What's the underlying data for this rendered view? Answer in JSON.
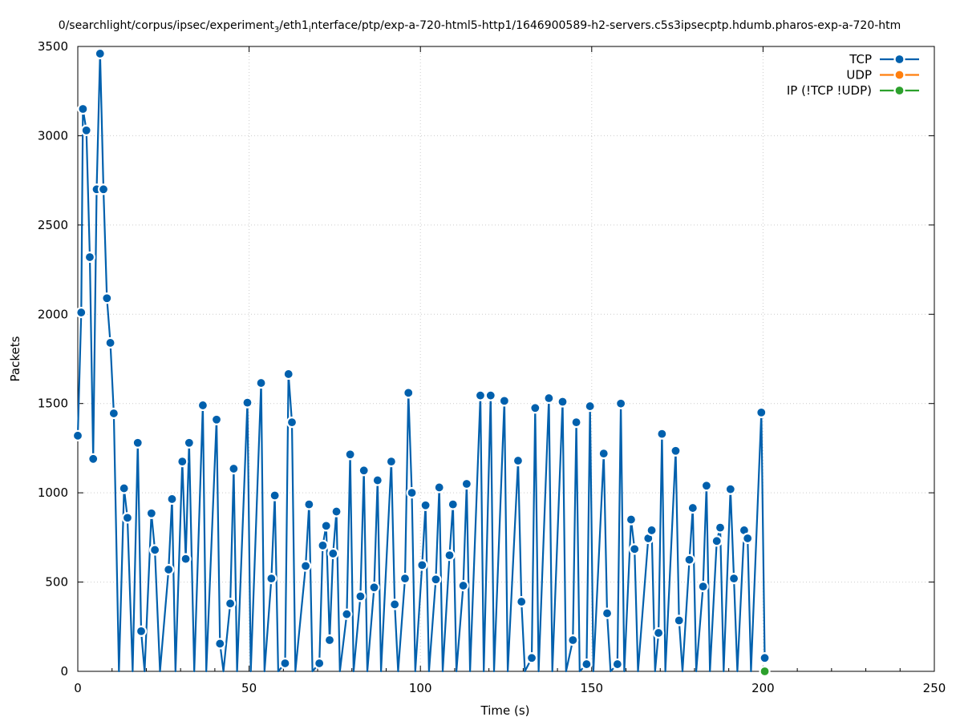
{
  "chart_data": {
    "type": "line",
    "title_left": "0/searchlight/corpus/ipsec/experiment",
    "title_sub1": "3",
    "title_mid": "/eth1",
    "title_sub2": "i",
    "title_right": "nterface/ptp/exp-a-720-html5-http1/1646900589-h2-servers.c5s3ipsecptp.hdumb.pharos-exp-a-720-htm",
    "xlabel": "Time (s)",
    "ylabel": "Packets",
    "xlim": [
      0,
      250
    ],
    "ylim": [
      0,
      3500
    ],
    "xticks": [
      0,
      50,
      100,
      150,
      200,
      250
    ],
    "yticks": [
      0,
      500,
      1000,
      1500,
      2000,
      2500,
      3000,
      3500
    ],
    "grid": true,
    "legend_position": "top-right",
    "series": [
      {
        "name": "TCP",
        "color": "#0060ad",
        "points": [
          [
            0,
            1320
          ],
          [
            1,
            2010
          ],
          [
            1.5,
            3150
          ],
          [
            2.5,
            3030
          ],
          [
            3.5,
            2320
          ],
          [
            4.5,
            1190
          ],
          [
            5.5,
            2700
          ],
          [
            6.5,
            3460
          ],
          [
            7.5,
            2700
          ],
          [
            8.5,
            2090
          ],
          [
            9.5,
            1840
          ],
          [
            10.5,
            1445
          ],
          [
            12,
            0
          ],
          [
            13.5,
            1025
          ],
          [
            14.5,
            860
          ],
          [
            16,
            0
          ],
          [
            17.5,
            1280
          ],
          [
            18.5,
            225
          ],
          [
            19.5,
            0
          ],
          [
            21.5,
            885
          ],
          [
            22.5,
            680
          ],
          [
            24,
            0
          ],
          [
            26.5,
            570
          ],
          [
            27.5,
            965
          ],
          [
            28.5,
            0
          ],
          [
            30.5,
            1175
          ],
          [
            31.5,
            630
          ],
          [
            32.5,
            1280
          ],
          [
            34,
            0
          ],
          [
            36.5,
            1490
          ],
          [
            37.5,
            0
          ],
          [
            40.5,
            1410
          ],
          [
            41.5,
            155
          ],
          [
            42.5,
            0
          ],
          [
            44.5,
            380
          ],
          [
            45.5,
            1135
          ],
          [
            46.5,
            0
          ],
          [
            49.5,
            1505
          ],
          [
            50.5,
            0
          ],
          [
            53.5,
            1615
          ],
          [
            54.5,
            0
          ],
          [
            56.5,
            520
          ],
          [
            57.5,
            985
          ],
          [
            58.5,
            0
          ],
          [
            60.5,
            45
          ],
          [
            61.5,
            1665
          ],
          [
            62.5,
            1395
          ],
          [
            63.5,
            0
          ],
          [
            66.5,
            590
          ],
          [
            67.5,
            935
          ],
          [
            68.5,
            0
          ],
          [
            70.5,
            45
          ],
          [
            71.5,
            705
          ],
          [
            72.5,
            815
          ],
          [
            73.5,
            175
          ],
          [
            74.5,
            660
          ],
          [
            75.5,
            895
          ],
          [
            76.5,
            0
          ],
          [
            78.5,
            320
          ],
          [
            79.5,
            1215
          ],
          [
            80.5,
            0
          ],
          [
            82.5,
            420
          ],
          [
            83.5,
            1125
          ],
          [
            84.5,
            0
          ],
          [
            86.5,
            470
          ],
          [
            87.5,
            1070
          ],
          [
            88.5,
            0
          ],
          [
            91.5,
            1175
          ],
          [
            92.5,
            375
          ],
          [
            93.5,
            0
          ],
          [
            95.5,
            520
          ],
          [
            96.5,
            1560
          ],
          [
            97.5,
            1000
          ],
          [
            98.5,
            0
          ],
          [
            100.5,
            595
          ],
          [
            101.5,
            930
          ],
          [
            102.5,
            0
          ],
          [
            104.5,
            515
          ],
          [
            105.5,
            1030
          ],
          [
            106.5,
            0
          ],
          [
            108.5,
            650
          ],
          [
            109.5,
            935
          ],
          [
            110.5,
            0
          ],
          [
            112.5,
            480
          ],
          [
            113.5,
            1050
          ],
          [
            114.5,
            0
          ],
          [
            117.5,
            1545
          ],
          [
            118.5,
            0
          ],
          [
            120.5,
            1545
          ],
          [
            121.5,
            0
          ],
          [
            124.5,
            1515
          ],
          [
            125.5,
            0
          ],
          [
            128.5,
            1180
          ],
          [
            129.5,
            390
          ],
          [
            130.5,
            0
          ],
          [
            132.5,
            75
          ],
          [
            133.5,
            1475
          ],
          [
            134.5,
            0
          ],
          [
            137.5,
            1530
          ],
          [
            138.5,
            0
          ],
          [
            141.5,
            1510
          ],
          [
            142.5,
            0
          ],
          [
            144.5,
            175
          ],
          [
            145.5,
            1395
          ],
          [
            146.5,
            0
          ],
          [
            148.5,
            40
          ],
          [
            149.5,
            1485
          ],
          [
            150.5,
            0
          ],
          [
            153.5,
            1220
          ],
          [
            154.5,
            325
          ],
          [
            155.5,
            0
          ],
          [
            157.5,
            40
          ],
          [
            158.5,
            1500
          ],
          [
            159.5,
            0
          ],
          [
            161.5,
            850
          ],
          [
            162.5,
            685
          ],
          [
            163.5,
            0
          ],
          [
            166.5,
            745
          ],
          [
            167.5,
            790
          ],
          [
            168.5,
            0
          ],
          [
            169.5,
            215
          ],
          [
            170.5,
            1330
          ],
          [
            171.5,
            0
          ],
          [
            174.5,
            1235
          ],
          [
            175.5,
            285
          ],
          [
            176.5,
            0
          ],
          [
            178.5,
            625
          ],
          [
            179.5,
            915
          ],
          [
            180.5,
            0
          ],
          [
            182.5,
            475
          ],
          [
            183.5,
            1040
          ],
          [
            184.5,
            0
          ],
          [
            186.5,
            730
          ],
          [
            187.5,
            805
          ],
          [
            188.5,
            0
          ],
          [
            190.5,
            1020
          ],
          [
            191.5,
            520
          ],
          [
            192.5,
            0
          ],
          [
            194.5,
            790
          ],
          [
            195.5,
            745
          ],
          [
            196.5,
            0
          ],
          [
            199.5,
            1450
          ],
          [
            200.5,
            75
          ]
        ]
      },
      {
        "name": "UDP",
        "color": "#ff7f0e",
        "points": []
      },
      {
        "name": "IP (!TCP  !UDP)",
        "color": "#2ca02c",
        "points": [
          [
            200.5,
            0
          ]
        ]
      }
    ]
  }
}
